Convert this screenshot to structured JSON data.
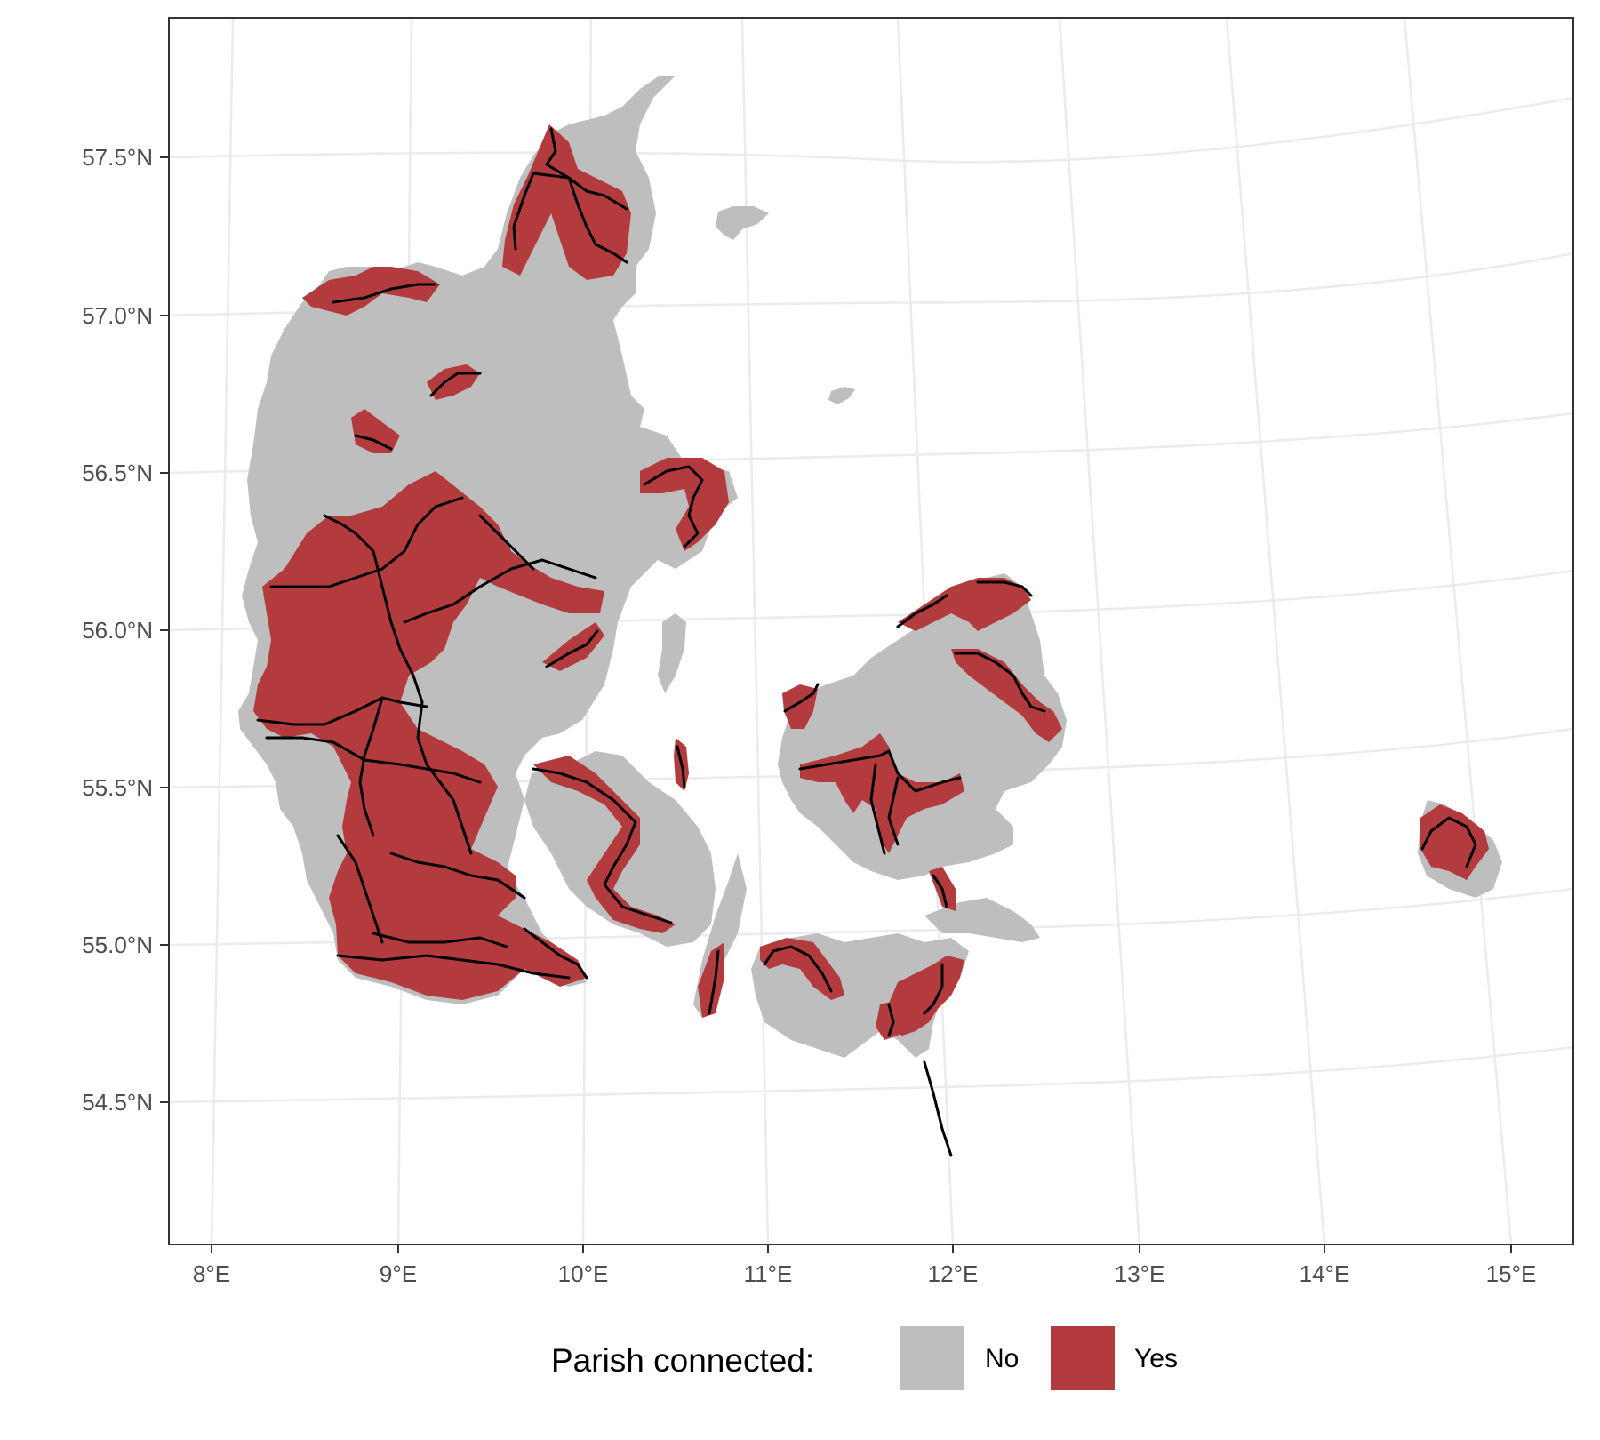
{
  "map": {
    "lon_labels": [
      "8°E",
      "9°E",
      "10°E",
      "11°E",
      "12°E",
      "13°E",
      "14°E",
      "15°E"
    ],
    "lat_labels": [
      "54.5°N",
      "55.0°N",
      "55.5°N",
      "56.0°N",
      "56.5°N",
      "57.0°N",
      "57.5°N"
    ]
  },
  "legend": {
    "title": "Parish connected:",
    "items": [
      {
        "label": "No",
        "color": "#bebebe"
      },
      {
        "label": "Yes",
        "color": "#b33b3e"
      }
    ]
  },
  "colors": {
    "land": "#bebebe",
    "connected": "#b33b3e",
    "railway": "#000000",
    "grid": "#ebebeb",
    "panel_border": "#333333"
  }
}
